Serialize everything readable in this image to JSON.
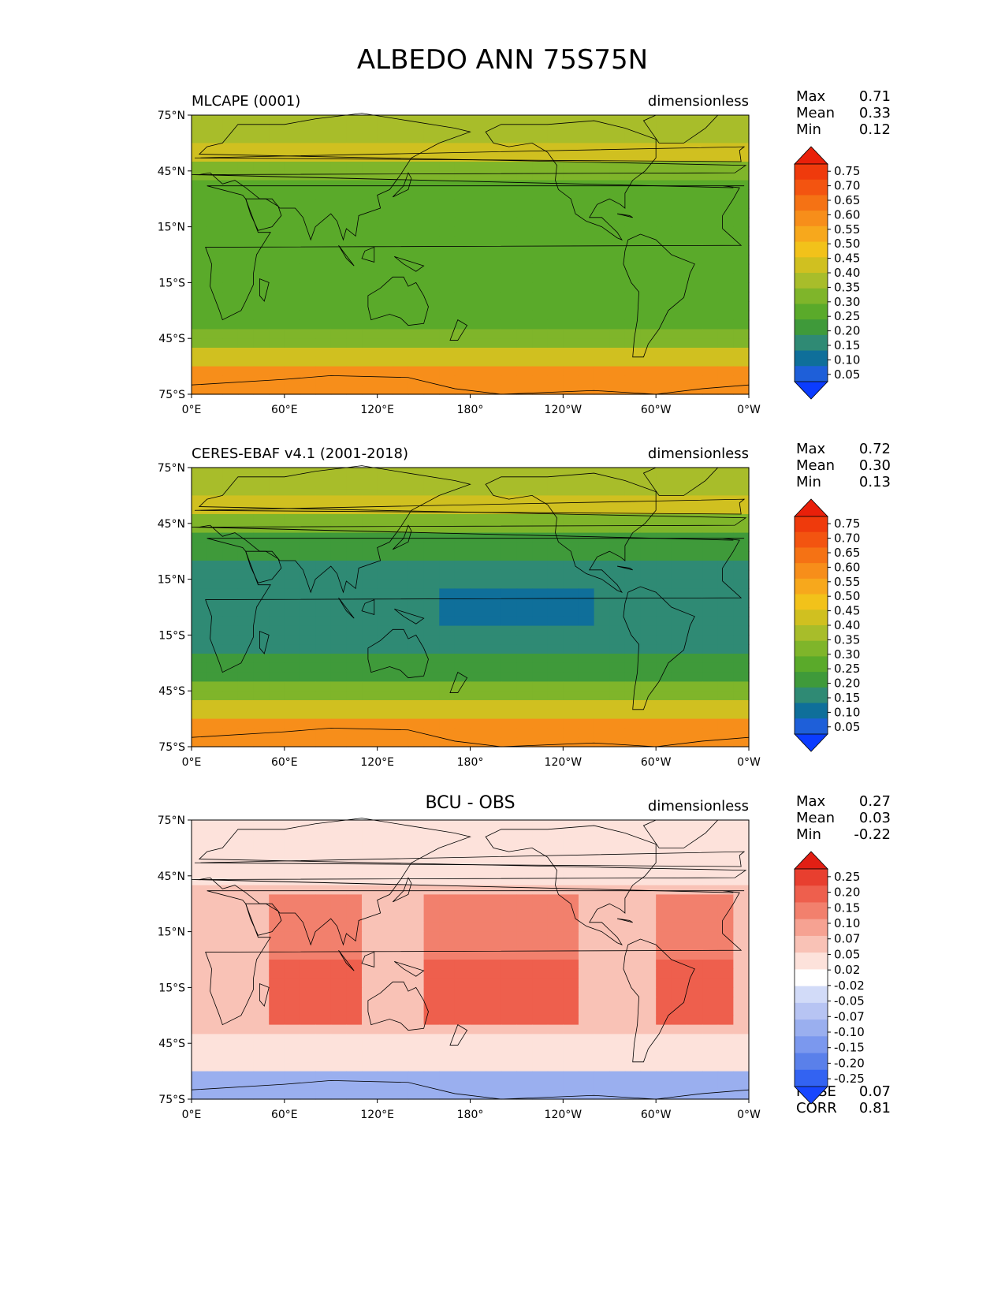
{
  "title": "ALBEDO ANN 75S75N",
  "colors": {
    "abs_levels": [
      "#0b3cff",
      "#1e5fd9",
      "#0f6f9a",
      "#2f8a74",
      "#3f9a3a",
      "#5aaa2a",
      "#7fb52a",
      "#a8bd2a",
      "#d0c020",
      "#f2c21a",
      "#f7a81c",
      "#f78e1a",
      "#f57214",
      "#f35410",
      "#ef3a0c",
      "#e9200a"
    ],
    "diff_levels": [
      "#1746ff",
      "#3363f2",
      "#5a80ea",
      "#7b98ee",
      "#9aafef",
      "#b7c4f3",
      "#d2dbf8",
      "#ffffff",
      "#fde2db",
      "#f9c2b6",
      "#f6a292",
      "#f2806d",
      "#ee5f4d",
      "#e83f2f",
      "#e21f14"
    ]
  },
  "panels": [
    {
      "left_label": "MLCAPE (0001)",
      "center_label": "",
      "units": "dimensionless",
      "stats": [
        {
          "key": "Max",
          "value": "0.71"
        },
        {
          "key": "Mean",
          "value": "0.33"
        },
        {
          "key": "Min",
          "value": "0.12"
        }
      ],
      "colorbar_ticks": [
        "0.75",
        "0.70",
        "0.65",
        "0.60",
        "0.55",
        "0.50",
        "0.45",
        "0.40",
        "0.35",
        "0.30",
        "0.25",
        "0.20",
        "0.15",
        "0.10",
        "0.05"
      ],
      "palette": "abs"
    },
    {
      "left_label": "CERES-EBAF v4.1 (2001-2018)",
      "center_label": "",
      "units": "dimensionless",
      "stats": [
        {
          "key": "Max",
          "value": "0.72"
        },
        {
          "key": "Mean",
          "value": "0.30"
        },
        {
          "key": "Min",
          "value": "0.13"
        }
      ],
      "colorbar_ticks": [
        "0.75",
        "0.70",
        "0.65",
        "0.60",
        "0.55",
        "0.50",
        "0.45",
        "0.40",
        "0.35",
        "0.30",
        "0.25",
        "0.20",
        "0.15",
        "0.10",
        "0.05"
      ],
      "palette": "abs"
    },
    {
      "left_label": "",
      "center_label": "BCU - OBS",
      "units": "dimensionless",
      "stats": [
        {
          "key": "Max",
          "value": "0.27"
        },
        {
          "key": "Mean",
          "value": "0.03"
        },
        {
          "key": "Min",
          "value": "-0.22"
        }
      ],
      "colorbar_ticks": [
        "0.25",
        "0.20",
        "0.15",
        "0.10",
        "0.07",
        "0.05",
        "0.02",
        "-0.02",
        "-0.05",
        "-0.07",
        "-0.10",
        "-0.15",
        "-0.20",
        "-0.25"
      ],
      "palette": "diff",
      "extra_stats": [
        {
          "key": "RMSE",
          "value": "0.07"
        },
        {
          "key": "CORR",
          "value": "0.81"
        }
      ]
    }
  ],
  "lat_ticks": [
    "75°N",
    "45°N",
    "15°N",
    "15°S",
    "45°S",
    "75°S"
  ],
  "lon_ticks": [
    "0°E",
    "60°E",
    "120°E",
    "180°",
    "120°W",
    "60°W",
    "0°W"
  ]
}
